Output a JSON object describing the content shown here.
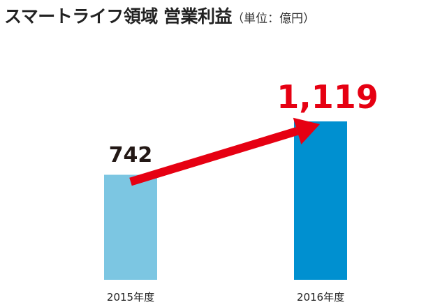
{
  "header": {
    "title": "スマートライフ領域 営業利益",
    "unit": "（単位：億円）"
  },
  "chart_data": {
    "type": "bar",
    "title": "スマートライフ領域 営業利益",
    "unit": "（単位：億円）",
    "categories": [
      "2015年度",
      "2016年度"
    ],
    "values": [
      742,
      1119
    ],
    "value_labels": [
      "742",
      "1,119"
    ],
    "colors": [
      "#7cc6e2",
      "#0090d0"
    ],
    "highlight_color": "#e60012",
    "label_color": "#231815",
    "ylim": [
      0,
      1200
    ],
    "grid": false,
    "legend": "none"
  }
}
